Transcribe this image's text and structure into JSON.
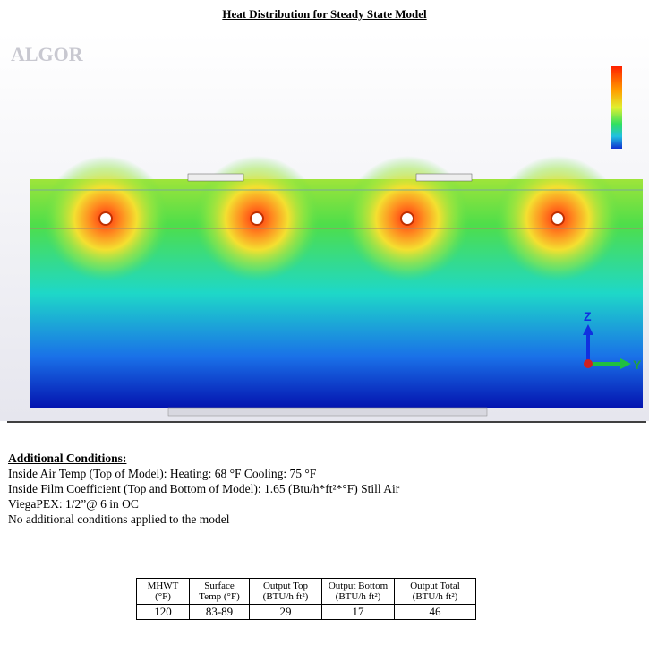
{
  "header": {
    "title": "Heat Distribution for Steady State Model"
  },
  "figure": {
    "logo": "ALGOR",
    "axis_z": "Z",
    "axis_y": "Y"
  },
  "conditions": {
    "heading": "Additional Conditions:",
    "lines": [
      "Inside Air Temp (Top of Model): Heating: 68 °F Cooling: 75 °F",
      "Inside Film Coefficient (Top and Bottom of Model): 1.65 (Btu/h*ft²*°F) Still Air",
      "ViegaPEX: 1/2”@ 6 in OC",
      "No additional conditions applied to the model"
    ]
  },
  "table": {
    "headers": [
      "MHWT (°F)",
      "Surface Temp (°F)",
      "Output Top (BTU/h ft²)",
      "Output Bottom (BTU/h ft²)",
      "Output Total (BTU/h ft²)"
    ],
    "rows": [
      [
        "120",
        "83-89",
        "29",
        "17",
        "46"
      ]
    ]
  }
}
